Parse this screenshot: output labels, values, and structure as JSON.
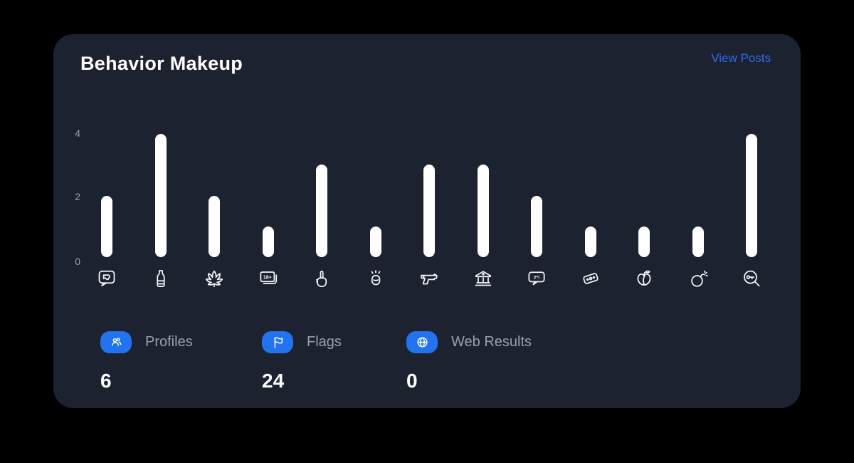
{
  "colors": {
    "page_bg": "#000000",
    "card_bg": "#1d2231",
    "bar": "#ffffff",
    "accent_blue": "#2273f0",
    "link_blue": "#2e6ce8",
    "label_gray": "#97a0b2",
    "axis_gray": "#99a1b0"
  },
  "card": {
    "title": "Behavior Makeup",
    "link_label": "View Posts"
  },
  "chart_data": {
    "type": "bar",
    "title": "Behavior Makeup",
    "categories": [
      "thumbs-down-bubble",
      "alcohol-bottle",
      "cannabis-leaf",
      "adult-18-plus",
      "middle-finger",
      "punch-fist",
      "gun",
      "bank-building",
      "profanity-bubble",
      "razor-blade",
      "peach",
      "bomb",
      "key-search"
    ],
    "values": [
      2,
      4,
      2,
      1,
      3,
      1,
      3,
      3,
      2,
      1,
      1,
      1,
      4
    ],
    "xlabel": "",
    "ylabel": "",
    "ylim": [
      0,
      4
    ],
    "yticks": [
      "0",
      "2",
      "4"
    ],
    "grid": false,
    "legend_position": "none",
    "bar_color": "#ffffff"
  },
  "icon_texts": {
    "adult": "18+",
    "profanity": "#*!"
  },
  "stats": [
    {
      "icon": "profiles-users-icon",
      "label": "Profiles",
      "value": "6"
    },
    {
      "icon": "flag-icon",
      "label": "Flags",
      "value": "24"
    },
    {
      "icon": "globe-icon",
      "label": "Web Results",
      "value": "0"
    }
  ]
}
